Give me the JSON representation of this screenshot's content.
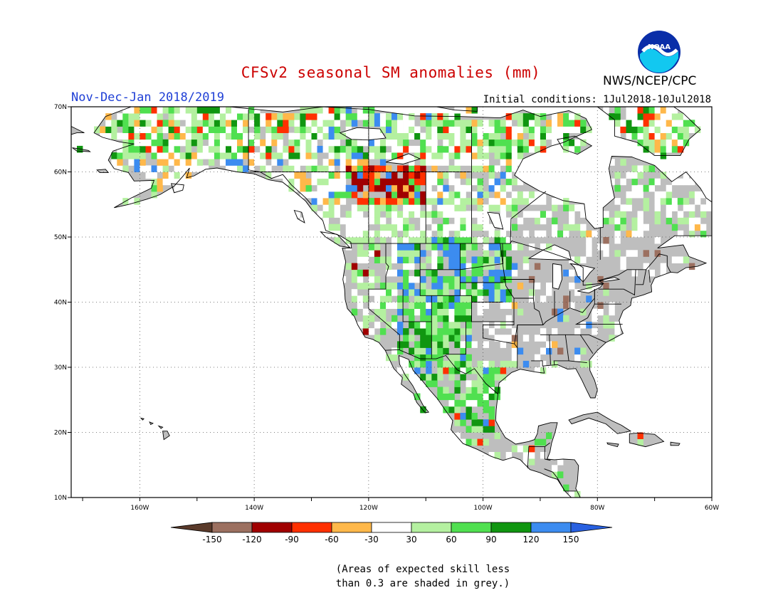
{
  "header": {
    "title": "CFSv2 seasonal SM anomalies (mm)",
    "period": "Nov-Dec-Jan 2018/2019",
    "initial_conditions": "Initial conditions: 1Jul2018-10Jul2018",
    "agency": "NWS/NCEP/CPC",
    "logo_text": "NOAA"
  },
  "map": {
    "lon_range": [
      -172,
      -60
    ],
    "lat_range": [
      10,
      70
    ],
    "lat_labels": [
      "10N",
      "20N",
      "30N",
      "40N",
      "50N",
      "60N",
      "70N"
    ],
    "lon_labels": [
      "160W",
      "140W",
      "120W",
      "100W",
      "80W",
      "60W"
    ],
    "ocean_color": "#ffffff",
    "land_color": "#bebebe",
    "grid_style": "dotted"
  },
  "colorbar": {
    "tick_labels": [
      "-150",
      "-120",
      "-90",
      "-60",
      "-30",
      "30",
      "60",
      "90",
      "120",
      "150"
    ],
    "colors": [
      "#5a3a2a",
      "#9c7060",
      "#a00000",
      "#ff3000",
      "#ffb84a",
      "#ffffff",
      "#b4f0a0",
      "#50e050",
      "#109610",
      "#3c8cf0",
      "#2860e0"
    ]
  },
  "note": {
    "line1": "(Areas of expected skill less",
    "line2": "than 0.3 are shaded in grey.)"
  }
}
